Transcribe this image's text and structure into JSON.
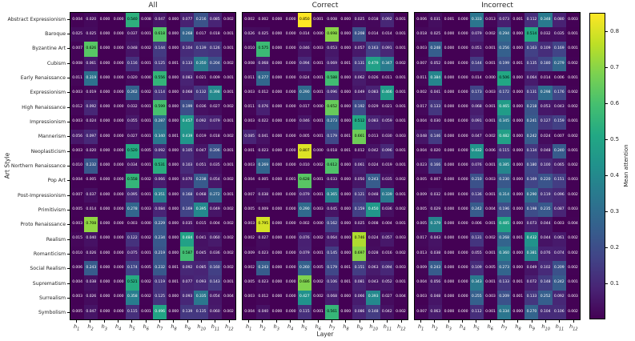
{
  "figure": {
    "ylabel": "Art Style",
    "xlabel": "Layer",
    "colorbar": {
      "label": "Mean attention",
      "ticks": [
        0.1,
        0.2,
        0.3,
        0.4,
        0.5,
        0.6,
        0.7,
        0.8
      ],
      "vmin": 0.0,
      "vmax": 0.85
    }
  },
  "chart_data": {
    "type": "heatmap",
    "colormap": "viridis",
    "value_format": ".3f",
    "columns": [
      "h1",
      "h2",
      "h3",
      "h4",
      "h5",
      "h6",
      "h7",
      "h8",
      "h9",
      "h10",
      "h11",
      "h12"
    ],
    "rows": [
      "Abstract Expressionism",
      "Baroque",
      "Byzantine Art",
      "Cubism",
      "Early Renaissance",
      "Expressionism",
      "High Renaissance",
      "Impressionism",
      "Mannerism",
      "Neoplasticism",
      "Northern Renaissance",
      "Pop Art",
      "Post-Impressionism",
      "Primitivism",
      "Proto Renaissance",
      "Realism",
      "Romanticism",
      "Social Realism",
      "Suprematism",
      "Surrealism",
      "Symbolism"
    ],
    "panels": [
      {
        "title": "All",
        "values": [
          [
            0.004,
            0.02,
            0.0,
            0.0,
            0.54,
            0.008,
            0.047,
            0.0,
            0.077,
            0.216,
            0.085,
            0.002
          ],
          [
            0.025,
            0.025,
            0.0,
            0.0,
            0.037,
            0.001,
            0.618,
            0.0,
            0.268,
            0.017,
            0.018,
            0.001
          ],
          [
            0.007,
            0.626,
            0.0,
            0.0,
            0.048,
            0.002,
            0.144,
            0.0,
            0.104,
            0.139,
            0.126,
            0.001
          ],
          [
            0.008,
            0.061,
            0.0,
            0.0,
            0.116,
            0.001,
            0.125,
            0.001,
            0.133,
            0.35,
            0.204,
            0.002
          ],
          [
            0.011,
            0.319,
            0.0,
            0.0,
            0.02,
            0.0,
            0.556,
            0.0,
            0.083,
            0.021,
            0.009,
            0.001
          ],
          [
            0.003,
            0.019,
            0.0,
            0.0,
            0.262,
            0.002,
            0.114,
            0.0,
            0.068,
            0.132,
            0.398,
            0.001
          ],
          [
            0.012,
            0.092,
            0.0,
            0.0,
            0.032,
            0.001,
            0.599,
            0.0,
            0.199,
            0.036,
            0.027,
            0.002
          ],
          [
            0.003,
            0.024,
            0.0,
            0.0,
            0.055,
            0.001,
            0.287,
            0.0,
            0.457,
            0.092,
            0.079,
            0.001
          ],
          [
            0.056,
            0.097,
            0.0,
            0.0,
            0.027,
            0.001,
            0.34,
            0.001,
            0.439,
            0.019,
            0.018,
            0.002
          ],
          [
            0.003,
            0.02,
            0.0,
            0.0,
            0.52,
            0.005,
            0.092,
            0.0,
            0.105,
            0.047,
            0.206,
            0.001
          ],
          [
            0.01,
            0.232,
            0.0,
            0.0,
            0.034,
            0.001,
            0.531,
            0.0,
            0.103,
            0.051,
            0.035,
            0.001
          ],
          [
            0.004,
            0.005,
            0.0,
            0.0,
            0.558,
            0.002,
            0.066,
            0.0,
            0.07,
            0.238,
            0.054,
            0.002
          ],
          [
            0.007,
            0.037,
            0.0,
            0.0,
            0.095,
            0.001,
            0.351,
            0.0,
            0.168,
            0.068,
            0.272,
            0.001
          ],
          [
            0.005,
            0.014,
            0.0,
            0.0,
            0.278,
            0.003,
            0.084,
            0.0,
            0.169,
            0.395,
            0.049,
            0.002
          ],
          [
            0.003,
            0.708,
            0.0,
            0.0,
            0.003,
            0.0,
            0.229,
            0.0,
            0.035,
            0.015,
            0.004,
            0.002
          ],
          [
            0.015,
            0.04,
            0.0,
            0.0,
            0.122,
            0.002,
            0.234,
            0.0,
            0.484,
            0.041,
            0.06,
            0.002
          ],
          [
            0.01,
            0.026,
            0.0,
            0.0,
            0.075,
            0.001,
            0.219,
            0.0,
            0.587,
            0.045,
            0.036,
            0.002
          ],
          [
            0.006,
            0.243,
            0.0,
            0.0,
            0.174,
            0.005,
            0.232,
            0.001,
            0.092,
            0.085,
            0.16,
            0.002
          ],
          [
            0.004,
            0.038,
            0.0,
            0.0,
            0.521,
            0.002,
            0.119,
            0.001,
            0.077,
            0.093,
            0.143,
            0.001
          ],
          [
            0.003,
            0.026,
            0.0,
            0.0,
            0.358,
            0.002,
            0.125,
            0.0,
            0.093,
            0.335,
            0.054,
            0.004
          ],
          [
            0.005,
            0.047,
            0.0,
            0.0,
            0.115,
            0.001,
            0.496,
            0.0,
            0.139,
            0.135,
            0.06,
            0.002
          ]
        ]
      },
      {
        "title": "Correct",
        "values": [
          [
            0.002,
            0.002,
            0.0,
            0.0,
            0.85,
            0.001,
            0.008,
            0.0,
            0.025,
            0.018,
            0.092,
            0.001
          ],
          [
            0.026,
            0.025,
            0.0,
            0.0,
            0.014,
            0.0,
            0.698,
            0.0,
            0.208,
            0.014,
            0.014,
            0.001
          ],
          [
            0.01,
            0.575,
            0.0,
            0.0,
            0.046,
            0.003,
            0.053,
            0.0,
            0.057,
            0.163,
            0.091,
            0.001
          ],
          [
            0.008,
            0.068,
            0.0,
            0.0,
            0.094,
            0.001,
            0.069,
            0.001,
            0.131,
            0.479,
            0.347,
            0.002
          ],
          [
            0.011,
            0.277,
            0.0,
            0.0,
            0.024,
            0.001,
            0.588,
            0.0,
            0.062,
            0.026,
            0.011,
            0.001
          ],
          [
            0.003,
            0.012,
            0.0,
            0.0,
            0.29,
            0.001,
            0.096,
            0.0,
            0.049,
            0.083,
            0.466,
            0.001
          ],
          [
            0.011,
            0.076,
            0.0,
            0.0,
            0.017,
            0.0,
            0.652,
            0.0,
            0.192,
            0.029,
            0.021,
            0.001
          ],
          [
            0.003,
            0.022,
            0.0,
            0.0,
            0.046,
            0.001,
            0.273,
            0.0,
            0.512,
            0.083,
            0.059,
            0.001
          ],
          [
            0.085,
            0.041,
            0.0,
            0.0,
            0.005,
            0.001,
            0.179,
            0.001,
            0.661,
            0.013,
            0.03,
            0.003
          ],
          [
            0.001,
            0.023,
            0.0,
            0.0,
            0.807,
            0.0,
            0.018,
            0.001,
            0.012,
            0.042,
            0.096,
            0.001
          ],
          [
            0.003,
            0.269,
            0.0,
            0.0,
            0.01,
            0.002,
            0.612,
            0.0,
            0.061,
            0.024,
            0.019,
            0.001
          ],
          [
            0.004,
            0.005,
            0.0,
            0.001,
            0.628,
            0.001,
            0.033,
            0.0,
            0.05,
            0.243,
            0.035,
            0.002
          ],
          [
            0.007,
            0.038,
            0.0,
            0.0,
            0.079,
            0.001,
            0.365,
            0.0,
            0.121,
            0.048,
            0.339,
            0.001
          ],
          [
            0.005,
            0.009,
            0.0,
            0.0,
            0.29,
            0.003,
            0.045,
            0.0,
            0.159,
            0.45,
            0.036,
            0.002
          ],
          [
            0.003,
            0.795,
            0.0,
            0.0,
            0.002,
            0.0,
            0.162,
            0.0,
            0.025,
            0.008,
            0.004,
            0.001
          ],
          [
            0.002,
            0.027,
            0.0,
            0.0,
            0.076,
            0.002,
            0.064,
            0.0,
            0.746,
            0.024,
            0.057,
            0.003
          ],
          [
            0.009,
            0.023,
            0.0,
            0.0,
            0.079,
            0.001,
            0.145,
            0.0,
            0.697,
            0.028,
            0.016,
            0.002
          ],
          [
            0.002,
            0.243,
            0.0,
            0.0,
            0.26,
            0.005,
            0.179,
            0.001,
            0.151,
            0.063,
            0.094,
            0.003
          ],
          [
            0.005,
            0.023,
            0.0,
            0.0,
            0.686,
            0.002,
            0.106,
            0.001,
            0.081,
            0.043,
            0.052,
            0.001
          ],
          [
            0.003,
            0.012,
            0.0,
            0.0,
            0.427,
            0.002,
            0.068,
            0.0,
            0.066,
            0.393,
            0.027,
            0.004
          ],
          [
            0.004,
            0.04,
            0.0,
            0.0,
            0.115,
            0.001,
            0.561,
            0.0,
            0.086,
            0.148,
            0.042,
            0.002
          ]
        ]
      },
      {
        "title": "Incorrect",
        "values": [
          [
            0.006,
            0.031,
            0.001,
            0.0,
            0.333,
            0.013,
            0.073,
            0.001,
            0.112,
            0.348,
            0.08,
            0.003
          ],
          [
            0.018,
            0.025,
            0.0,
            0.0,
            0.079,
            0.002,
            0.294,
            0.0,
            0.514,
            0.032,
            0.035,
            0.001
          ],
          [
            0.003,
            0.248,
            0.0,
            0.0,
            0.051,
            0.001,
            0.256,
            0.0,
            0.163,
            0.109,
            0.169,
            0.001
          ],
          [
            0.007,
            0.052,
            0.0,
            0.0,
            0.144,
            0.001,
            0.199,
            0.001,
            0.135,
            0.18,
            0.279,
            0.002
          ],
          [
            0.011,
            0.384,
            0.0,
            0.0,
            0.014,
            0.0,
            0.506,
            0.0,
            0.064,
            0.014,
            0.006,
            0.001
          ],
          [
            0.002,
            0.041,
            0.0,
            0.0,
            0.173,
            0.003,
            0.172,
            0.0,
            0.131,
            0.298,
            0.176,
            0.002
          ],
          [
            0.017,
            0.133,
            0.0,
            0.0,
            0.068,
            0.001,
            0.465,
            0.0,
            0.218,
            0.053,
            0.043,
            0.002
          ],
          [
            0.004,
            0.03,
            0.0,
            0.0,
            0.091,
            0.001,
            0.345,
            0.0,
            0.241,
            0.127,
            0.159,
            0.001
          ],
          [
            0.048,
            0.146,
            0.0,
            0.0,
            0.047,
            0.002,
            0.482,
            0.0,
            0.242,
            0.024,
            0.007,
            0.002
          ],
          [
            0.004,
            0.02,
            0.0,
            0.0,
            0.432,
            0.006,
            0.115,
            0.0,
            0.134,
            0.048,
            0.24,
            0.001
          ],
          [
            0.023,
            0.166,
            0.0,
            0.0,
            0.076,
            0.001,
            0.385,
            0.0,
            0.18,
            0.1,
            0.065,
            0.002
          ],
          [
            0.005,
            0.007,
            0.0,
            0.0,
            0.21,
            0.003,
            0.23,
            0.0,
            0.169,
            0.22,
            0.151,
            0.003
          ],
          [
            0.009,
            0.032,
            0.0,
            0.0,
            0.136,
            0.001,
            0.314,
            0.0,
            0.29,
            0.119,
            0.096,
            0.002
          ],
          [
            0.005,
            0.029,
            0.0,
            0.0,
            0.242,
            0.004,
            0.196,
            0.0,
            0.198,
            0.235,
            0.087,
            0.003
          ],
          [
            0.005,
            0.379,
            0.0,
            0.0,
            0.006,
            0.001,
            0.485,
            0.0,
            0.073,
            0.044,
            0.003,
            0.004
          ],
          [
            0.017,
            0.043,
            0.0,
            0.0,
            0.131,
            0.002,
            0.268,
            0.001,
            0.432,
            0.044,
            0.061,
            0.002
          ],
          [
            0.013,
            0.038,
            0.0,
            0.0,
            0.055,
            0.001,
            0.36,
            0.0,
            0.381,
            0.076,
            0.074,
            0.002
          ],
          [
            0.009,
            0.243,
            0.0,
            0.0,
            0.109,
            0.005,
            0.273,
            0.0,
            0.049,
            0.102,
            0.209,
            0.002
          ],
          [
            0.004,
            0.056,
            0.0,
            0.0,
            0.343,
            0.001,
            0.133,
            0.001,
            0.072,
            0.148,
            0.242,
            0.001
          ],
          [
            0.003,
            0.048,
            0.0,
            0.0,
            0.255,
            0.003,
            0.209,
            0.001,
            0.133,
            0.252,
            0.092,
            0.003
          ],
          [
            0.007,
            0.063,
            0.0,
            0.0,
            0.112,
            0.001,
            0.334,
            0.0,
            0.27,
            0.104,
            0.106,
            0.002
          ]
        ]
      }
    ]
  }
}
